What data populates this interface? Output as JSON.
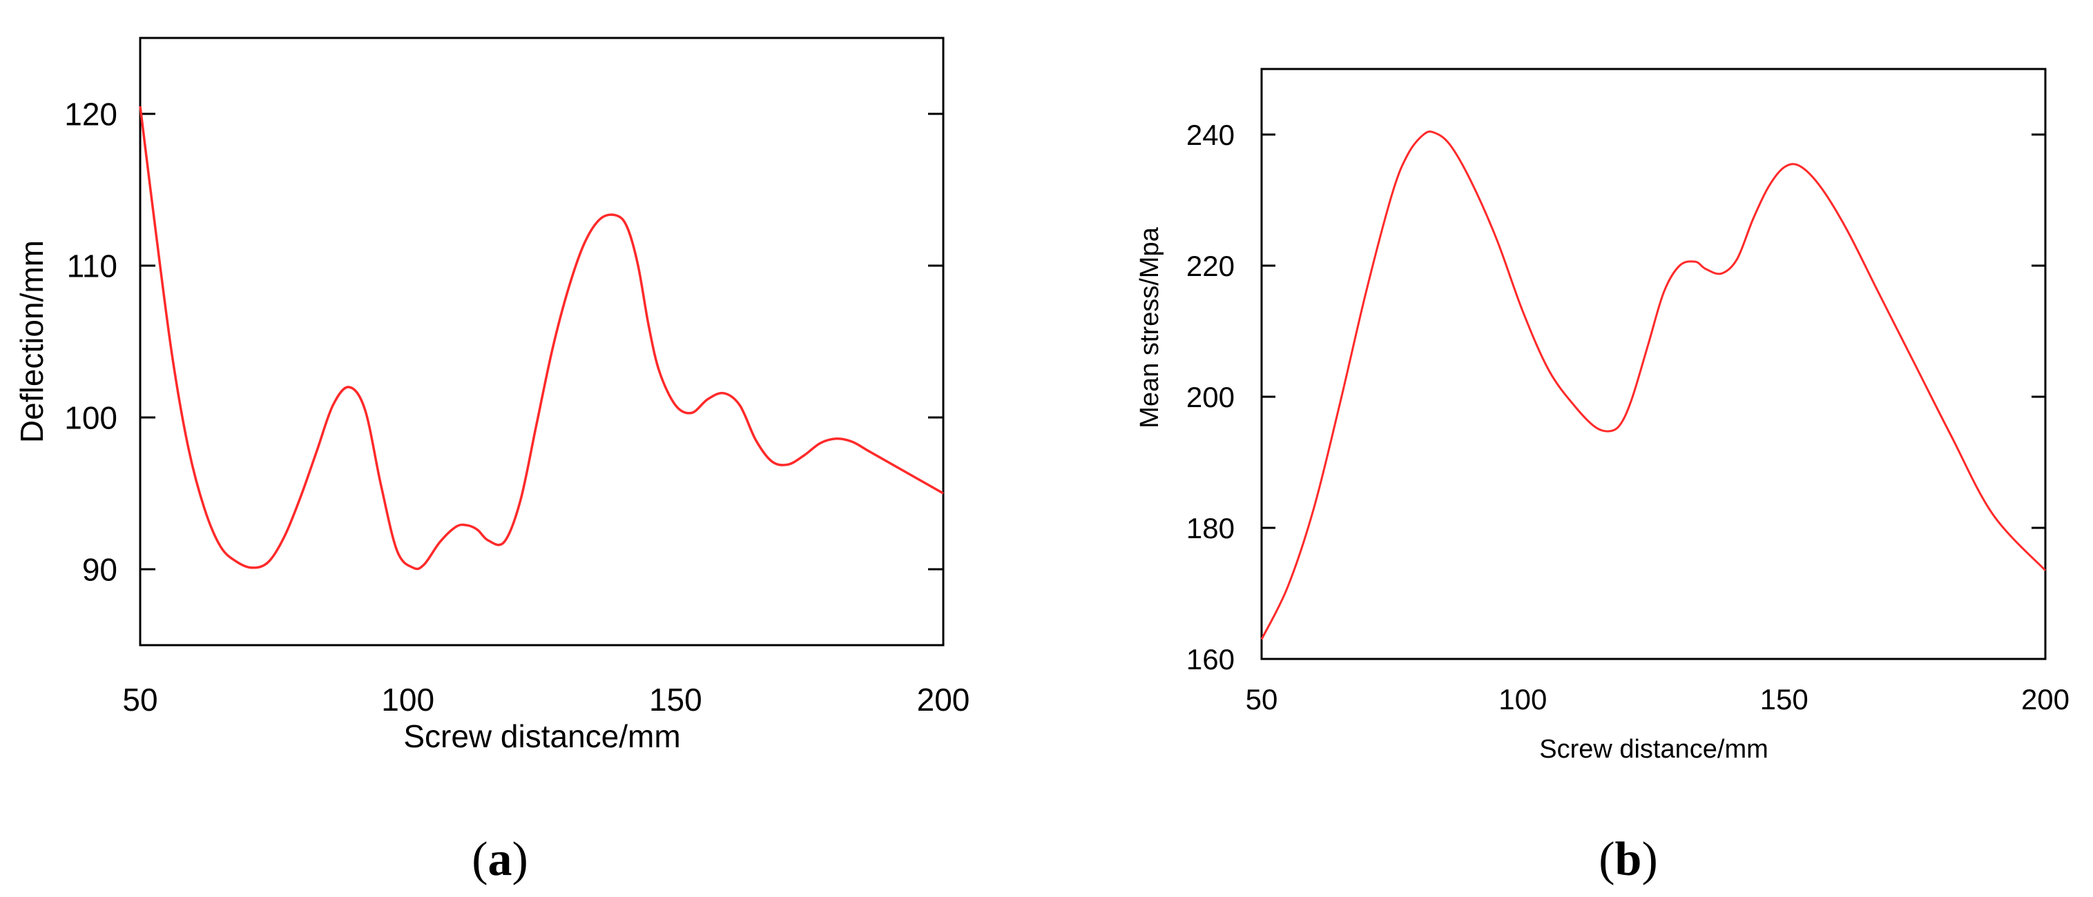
{
  "chart_data": [
    {
      "type": "line",
      "xlabel": "Screw distance/mm",
      "ylabel": "Deflection/mm",
      "xlim": [
        50,
        200
      ],
      "ylim": [
        85,
        125
      ],
      "xticks": [
        50,
        100,
        150,
        200
      ],
      "yticks": [
        90,
        100,
        110,
        120
      ],
      "grid": false,
      "color": "#ff2a2a",
      "caption_open": "(",
      "caption_letter": "a",
      "caption_close": ")",
      "series": [
        {
          "x": [
            50,
            53,
            56,
            59,
            62,
            65,
            68,
            71,
            74,
            77,
            80,
            83,
            86,
            89,
            92,
            95,
            98,
            101,
            103,
            106,
            109,
            111,
            113,
            115,
            118,
            121,
            124,
            127,
            130,
            133,
            136,
            139,
            141,
            143,
            145,
            147,
            150,
            153,
            156,
            159,
            162,
            165,
            168,
            171,
            174,
            177,
            180,
            183,
            186,
            190,
            195,
            200
          ],
          "y": [
            120.5,
            112,
            104,
            98,
            94,
            91.5,
            90.5,
            90.1,
            90.5,
            92.2,
            94.8,
            97.8,
            100.8,
            102,
            100.5,
            95.5,
            91.2,
            90.1,
            90.3,
            91.8,
            92.8,
            92.9,
            92.6,
            91.9,
            91.8,
            94.5,
            99.5,
            104.5,
            108.5,
            111.5,
            113.1,
            113.3,
            112.5,
            110,
            106,
            103,
            100.8,
            100.3,
            101.2,
            101.6,
            100.8,
            98.5,
            97.1,
            96.9,
            97.5,
            98.3,
            98.6,
            98.4,
            97.8,
            97,
            96,
            95
          ]
        }
      ]
    },
    {
      "type": "line",
      "xlabel": "Screw distance/mm",
      "ylabel": "Mean stress/Mpa",
      "xlim": [
        50,
        200
      ],
      "ylim": [
        160,
        250
      ],
      "xticks": [
        50,
        100,
        150,
        200
      ],
      "yticks": [
        160,
        180,
        200,
        220,
        240
      ],
      "grid": false,
      "color": "#ff2a2a",
      "caption_open": "(",
      "caption_letter": "b",
      "caption_close": ")",
      "series": [
        {
          "x": [
            50,
            55,
            60,
            65,
            70,
            75,
            78,
            81,
            83,
            86,
            90,
            95,
            100,
            105,
            110,
            114,
            117,
            119,
            121,
            124,
            127,
            130,
            133,
            135,
            138,
            141,
            144,
            147,
            150,
            153,
            157,
            162,
            168,
            175,
            182,
            190,
            200
          ],
          "y": [
            163,
            171,
            183,
            199,
            216,
            231,
            237,
            240,
            240.3,
            238.5,
            233,
            224,
            213,
            204,
            198.5,
            195.3,
            194.8,
            196.2,
            200,
            208,
            216,
            220,
            220.6,
            219.5,
            218.8,
            221,
            227,
            232,
            235,
            235.2,
            232,
            225.5,
            216,
            205,
            194,
            182,
            173.5
          ]
        }
      ]
    }
  ]
}
